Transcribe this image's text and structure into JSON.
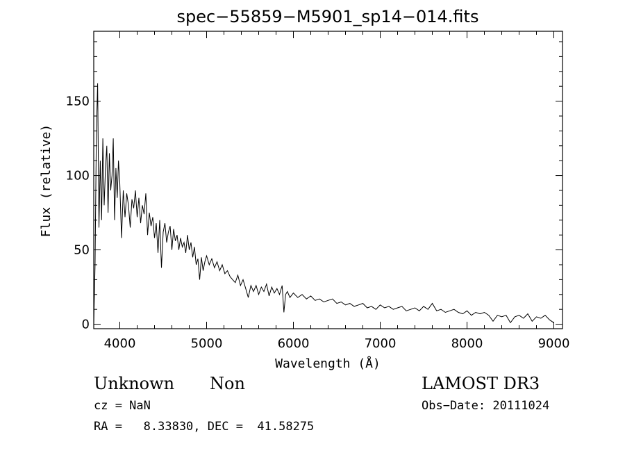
{
  "chart_data": {
    "type": "line",
    "title": "spec−55859−M5901_sp14−014.fits",
    "xlabel": "Wavelength (Å)",
    "ylabel": "Flux (relative)",
    "xlim": [
      3700,
      9100
    ],
    "ylim": [
      -3,
      197
    ],
    "x_ticks": [
      4000,
      5000,
      6000,
      7000,
      8000,
      9000
    ],
    "y_ticks": [
      0,
      50,
      100,
      150
    ],
    "grid": false,
    "series": [
      {
        "x": [
          3700,
          3715,
          3730,
          3745,
          3760,
          3775,
          3790,
          3805,
          3820,
          3835,
          3850,
          3865,
          3880,
          3895,
          3910,
          3925,
          3940,
          3955,
          3970,
          3985,
          4000,
          4020,
          4040,
          4060,
          4080,
          4100,
          4120,
          4140,
          4160,
          4180,
          4200,
          4220,
          4240,
          4260,
          4280,
          4300,
          4320,
          4340,
          4360,
          4380,
          4400,
          4420,
          4440,
          4460,
          4480,
          4500,
          4520,
          4540,
          4560,
          4580,
          4600,
          4620,
          4640,
          4660,
          4680,
          4700,
          4720,
          4740,
          4760,
          4780,
          4800,
          4820,
          4840,
          4860,
          4880,
          4900,
          4920,
          4940,
          4960,
          4980,
          5000,
          5030,
          5060,
          5090,
          5120,
          5150,
          5180,
          5210,
          5240,
          5270,
          5300,
          5330,
          5360,
          5390,
          5420,
          5450,
          5480,
          5510,
          5540,
          5570,
          5600,
          5630,
          5660,
          5690,
          5720,
          5750,
          5780,
          5810,
          5840,
          5870,
          5890,
          5910,
          5930,
          5960,
          6000,
          6050,
          6100,
          6150,
          6200,
          6250,
          6300,
          6350,
          6400,
          6450,
          6500,
          6550,
          6600,
          6650,
          6700,
          6750,
          6800,
          6850,
          6900,
          6950,
          7000,
          7050,
          7100,
          7150,
          7200,
          7250,
          7300,
          7350,
          7400,
          7450,
          7500,
          7550,
          7600,
          7650,
          7700,
          7750,
          7800,
          7850,
          7900,
          7950,
          8000,
          8050,
          8100,
          8150,
          8200,
          8250,
          8300,
          8350,
          8400,
          8450,
          8500,
          8550,
          8600,
          8650,
          8700,
          8750,
          8800,
          8850,
          8900,
          8950,
          9000
        ],
        "values": [
          0,
          40,
          130,
          162,
          65,
          110,
          70,
          125,
          80,
          105,
          120,
          75,
          115,
          90,
          100,
          125,
          70,
          105,
          85,
          110,
          95,
          58,
          90,
          72,
          88,
          80,
          65,
          84,
          78,
          90,
          72,
          85,
          68,
          80,
          74,
          88,
          60,
          75,
          66,
          72,
          58,
          68,
          48,
          70,
          38,
          62,
          68,
          55,
          62,
          66,
          50,
          64,
          56,
          60,
          50,
          58,
          52,
          55,
          48,
          60,
          50,
          55,
          45,
          52,
          40,
          44,
          30,
          45,
          36,
          42,
          46,
          40,
          44,
          38,
          42,
          36,
          40,
          34,
          36,
          32,
          30,
          28,
          33,
          26,
          30,
          24,
          18,
          26,
          22,
          26,
          20,
          25,
          22,
          27,
          19,
          25,
          21,
          24,
          20,
          26,
          8,
          20,
          22,
          18,
          21,
          18,
          20,
          17,
          19,
          16,
          17,
          15,
          16,
          17,
          14,
          15,
          13,
          14,
          12,
          13,
          14,
          11,
          12,
          10,
          13,
          11,
          12,
          10,
          11,
          12,
          9,
          10,
          11,
          9,
          12,
          10,
          14,
          9,
          10,
          8,
          9,
          10,
          8,
          7,
          9,
          6,
          8,
          7,
          8,
          6,
          2,
          6,
          5,
          6,
          1,
          5,
          6,
          4,
          7,
          2,
          5,
          4,
          6,
          3,
          1
        ]
      }
    ]
  },
  "info": {
    "object_class": "Unknown",
    "subclass": "Non",
    "survey": "LAMOST DR3",
    "redshift": "cz = NaN",
    "obs_date": "Obs−Date: 20111024",
    "coords": "RA =   8.33830, DEC =  41.58275"
  }
}
